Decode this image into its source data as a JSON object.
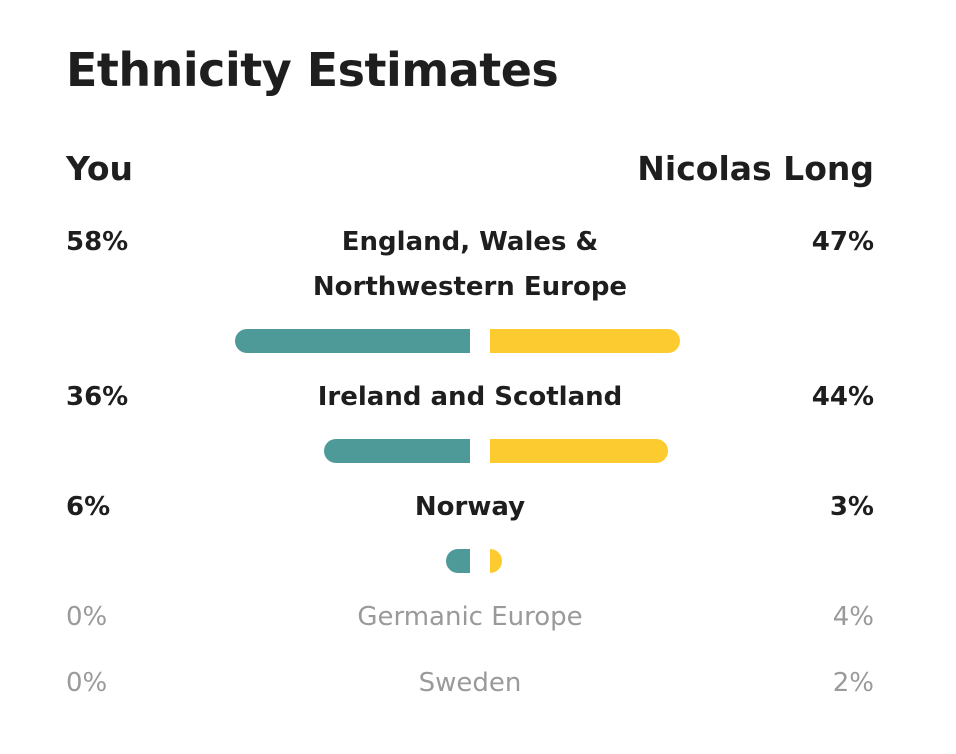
{
  "title": "Ethnicity Estimates",
  "columns": {
    "left": "You",
    "right": "Nicolas Long"
  },
  "colors": {
    "left_bar": "#4d9a98",
    "right_bar": "#fccb2f",
    "muted_text": "#9a9a9a"
  },
  "regions": [
    {
      "line1": "England, Wales &",
      "line2": "Northwestern Europe",
      "left_pct_label": "58%",
      "right_pct_label": "47%",
      "left_value": 58,
      "right_value": 47,
      "highlighted": true
    },
    {
      "line1": "Ireland and Scotland",
      "line2": "",
      "left_pct_label": "36%",
      "right_pct_label": "44%",
      "left_value": 36,
      "right_value": 44,
      "highlighted": true
    },
    {
      "line1": "Norway",
      "line2": "",
      "left_pct_label": "6%",
      "right_pct_label": "3%",
      "left_value": 6,
      "right_value": 3,
      "highlighted": true
    },
    {
      "line1": "Germanic Europe",
      "line2": "",
      "left_pct_label": "0%",
      "right_pct_label": "4%",
      "left_value": 0,
      "right_value": 4,
      "highlighted": false
    },
    {
      "line1": "Sweden",
      "line2": "",
      "left_pct_label": "0%",
      "right_pct_label": "2%",
      "left_value": 0,
      "right_value": 2,
      "highlighted": false
    }
  ]
}
